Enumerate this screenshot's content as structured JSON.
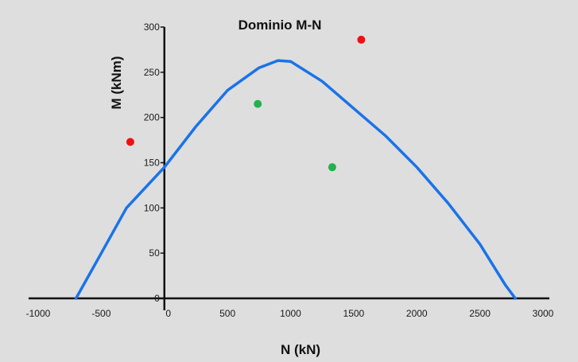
{
  "chart_data": {
    "type": "line",
    "title": "Dominio M-N",
    "xlabel": "N (kN)",
    "ylabel": "M (kNm)",
    "xlim": [
      -1000,
      3000
    ],
    "ylim": [
      0,
      300
    ],
    "x_ticks": [
      -1000,
      -500,
      0,
      500,
      1000,
      1500,
      2000,
      2500,
      3000
    ],
    "y_ticks": [
      0,
      50,
      100,
      150,
      200,
      250,
      300
    ],
    "x_tick_labels": [
      "-1000",
      "-500",
      "0",
      "500",
      "1000",
      "1500",
      "2000",
      "2500",
      "3000"
    ],
    "y_tick_labels": [
      "0",
      "50",
      "100",
      "150",
      "200",
      "250",
      "300"
    ],
    "grid": false,
    "series": [
      {
        "kind": "line",
        "color": "#1a73e8",
        "points": [
          [
            -700,
            0
          ],
          [
            -500,
            50
          ],
          [
            -300,
            100
          ],
          [
            -100,
            130
          ],
          [
            0,
            145
          ],
          [
            250,
            190
          ],
          [
            500,
            230
          ],
          [
            750,
            255
          ],
          [
            900,
            263
          ],
          [
            1000,
            262
          ],
          [
            1250,
            240
          ],
          [
            1500,
            210
          ],
          [
            1750,
            180
          ],
          [
            2000,
            145
          ],
          [
            2250,
            105
          ],
          [
            2500,
            60
          ],
          [
            2700,
            15
          ],
          [
            2780,
            0
          ]
        ]
      },
      {
        "kind": "scatter",
        "color": "#ee1111",
        "points": [
          [
            -270,
            173
          ],
          [
            1560,
            286
          ]
        ]
      },
      {
        "kind": "scatter",
        "color": "#22b14c",
        "points": [
          [
            740,
            215
          ],
          [
            1330,
            145
          ]
        ]
      }
    ]
  }
}
